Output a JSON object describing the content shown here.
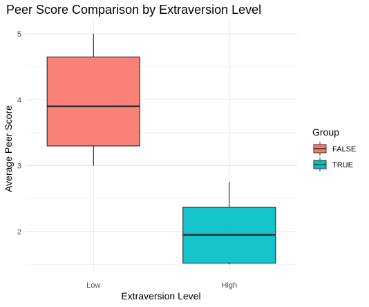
{
  "chart_data": {
    "type": "boxplot",
    "title": "Peer Score Comparison by Extraversion Level",
    "xlabel": "Extraversion Level",
    "ylabel": "Average Peer Score",
    "categories": [
      "Low",
      "High"
    ],
    "ylim": [
      1.4,
      5.2
    ],
    "y_ticks": [
      2,
      3,
      4,
      5
    ],
    "grid": true,
    "legend": {
      "title": "Group",
      "position": "right"
    },
    "series": [
      {
        "name": "FALSE",
        "category": "Low",
        "color": "#F8766D",
        "min": 3.0,
        "q1": 3.3,
        "median": 3.9,
        "q3": 4.65,
        "max": 5.0
      },
      {
        "name": "TRUE",
        "category": "High",
        "color": "#00BFC4",
        "min": 1.5,
        "q1": 1.52,
        "median": 1.95,
        "q3": 2.37,
        "max": 2.75
      }
    ]
  }
}
